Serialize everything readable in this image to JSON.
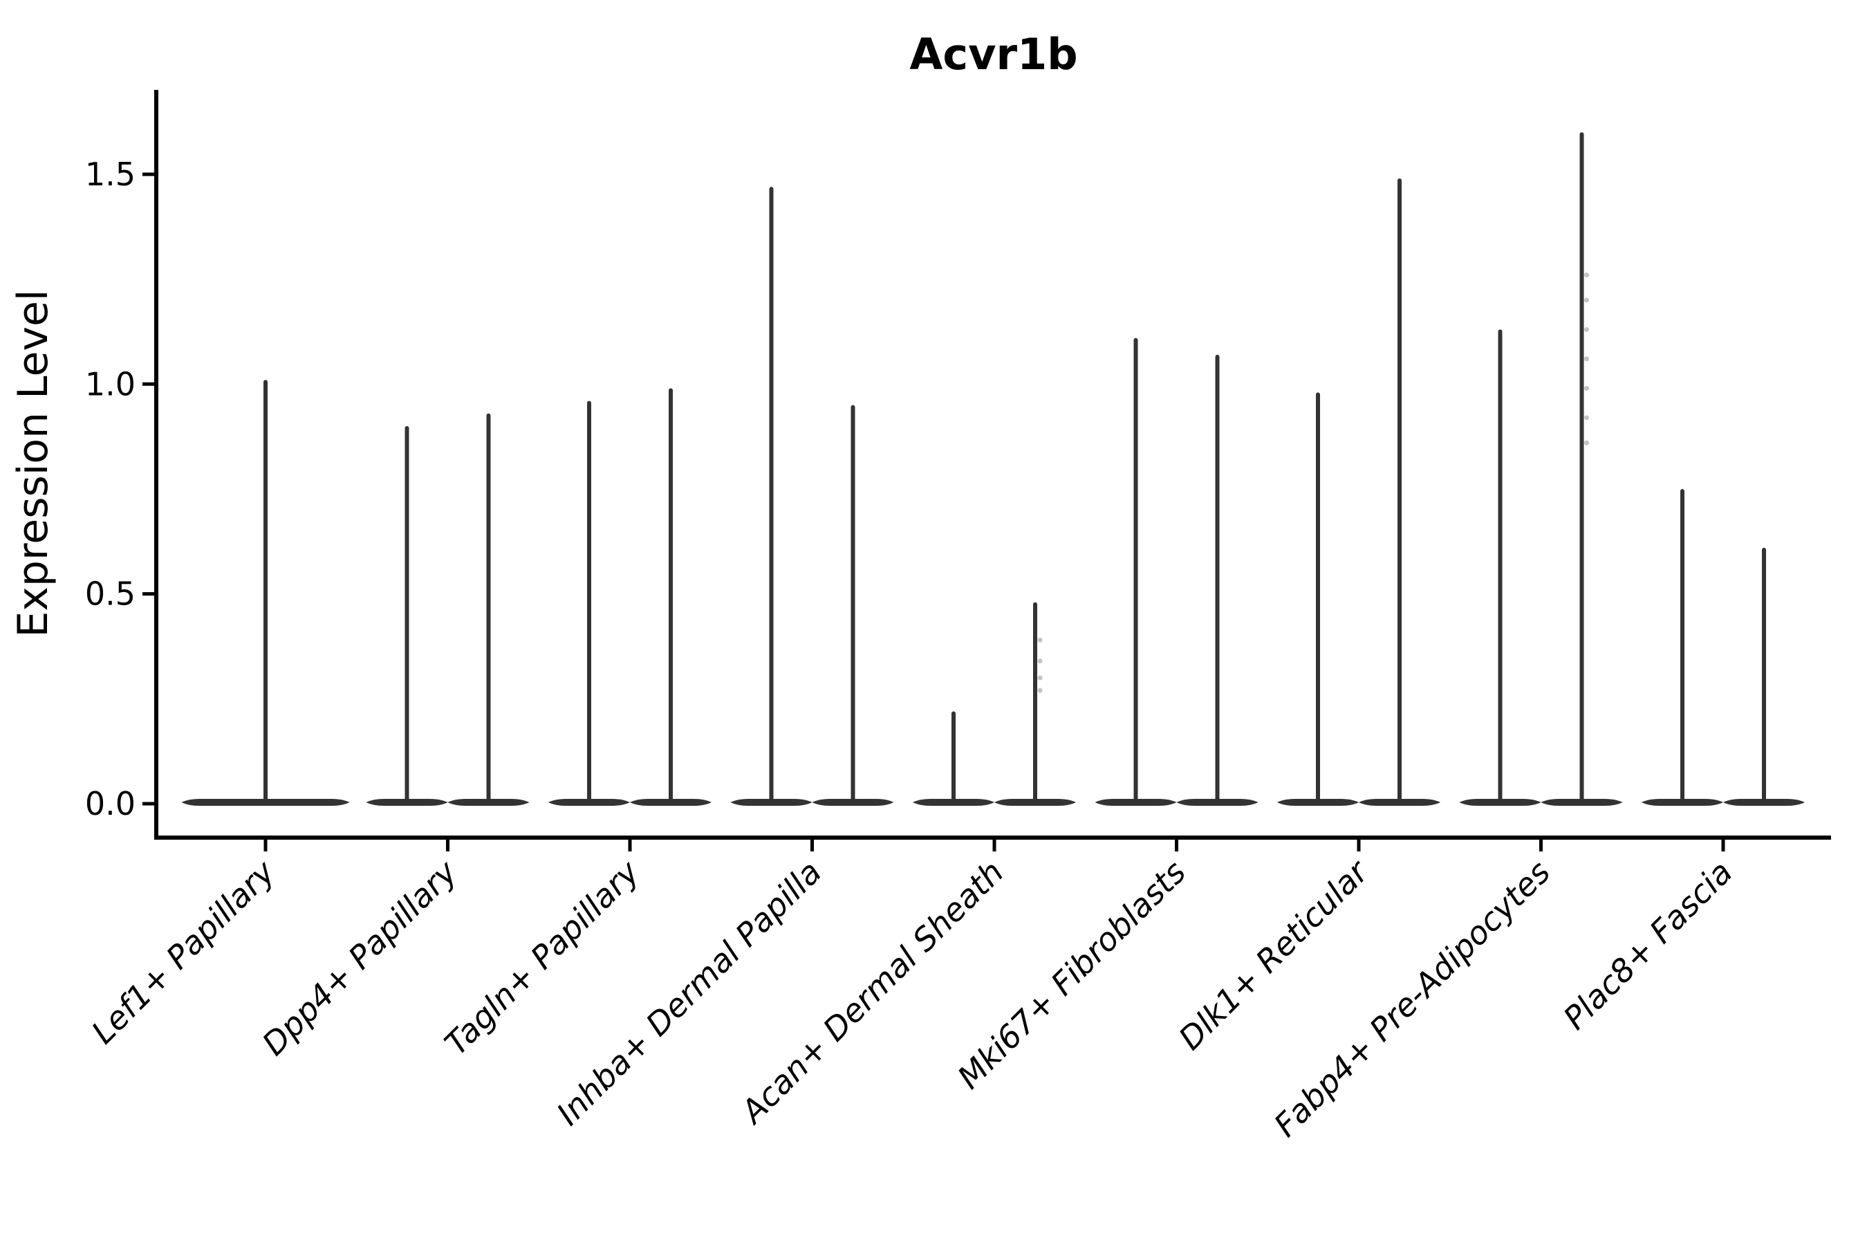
{
  "figure": {
    "background": "#ffffff"
  },
  "chart_data": {
    "type": "violin",
    "title": "Acvr1b",
    "ylabel": "Expression Level",
    "xlabel": "",
    "ylim": [
      -0.08,
      1.7
    ],
    "yticks": [
      "0.0",
      "0.5",
      "1.0",
      "1.5"
    ],
    "ytick_values": [
      0,
      0.5,
      1.0,
      1.5
    ],
    "grid": false,
    "legend": "none",
    "violin_color": "#333333",
    "axis_color": "#000000",
    "point_color": "#b9b9b9",
    "categories": [
      "Lef1+ Papillary",
      "Dpp4+ Papillary",
      "Tagln+ Papillary",
      "Inhba+ Dermal Papilla",
      "Acan+ Dermal Sheath",
      "Mki67+ Fibroblasts",
      "Dlk1+ Reticular",
      "Fabp4+ Pre-Adipocytes",
      "Plac8+ Fascia"
    ],
    "groups": [
      {
        "category": "Lef1+ Papillary",
        "violins": [
          {
            "min": 0,
            "max": 1.01,
            "points": []
          }
        ]
      },
      {
        "category": "Dpp4+ Papillary",
        "violins": [
          {
            "min": 0,
            "max": 0.9,
            "points": []
          },
          {
            "min": 0,
            "max": 0.93,
            "points": []
          }
        ]
      },
      {
        "category": "Tagln+ Papillary",
        "violins": [
          {
            "min": 0,
            "max": 0.96,
            "points": []
          },
          {
            "min": 0,
            "max": 0.99,
            "points": []
          }
        ]
      },
      {
        "category": "Inhba+ Dermal Papilla",
        "violins": [
          {
            "min": 0,
            "max": 1.47,
            "points": []
          },
          {
            "min": 0,
            "max": 0.95,
            "points": []
          }
        ]
      },
      {
        "category": "Acan+ Dermal Sheath",
        "violins": [
          {
            "min": 0,
            "max": 0.22,
            "points": []
          },
          {
            "min": 0,
            "max": 0.48,
            "points": [
              0.39,
              0.34,
              0.3,
              0.27
            ]
          }
        ]
      },
      {
        "category": "Mki67+ Fibroblasts",
        "violins": [
          {
            "min": 0,
            "max": 1.11,
            "points": []
          },
          {
            "min": 0,
            "max": 1.07,
            "points": []
          }
        ]
      },
      {
        "category": "Dlk1+ Reticular",
        "violins": [
          {
            "min": 0,
            "max": 0.98,
            "points": []
          },
          {
            "min": 0,
            "max": 1.49,
            "points": []
          }
        ]
      },
      {
        "category": "Fabp4+ Pre-Adipocytes",
        "violins": [
          {
            "min": 0,
            "max": 1.13,
            "points": []
          },
          {
            "min": 0,
            "max": 1.6,
            "points": [
              1.26,
              1.2,
              1.13,
              1.06,
              0.99,
              0.92,
              0.86
            ]
          }
        ]
      },
      {
        "category": "Plac8+ Fascia",
        "violins": [
          {
            "min": 0,
            "max": 0.75,
            "points": []
          },
          {
            "min": 0,
            "max": 0.61,
            "points": []
          }
        ]
      }
    ]
  }
}
